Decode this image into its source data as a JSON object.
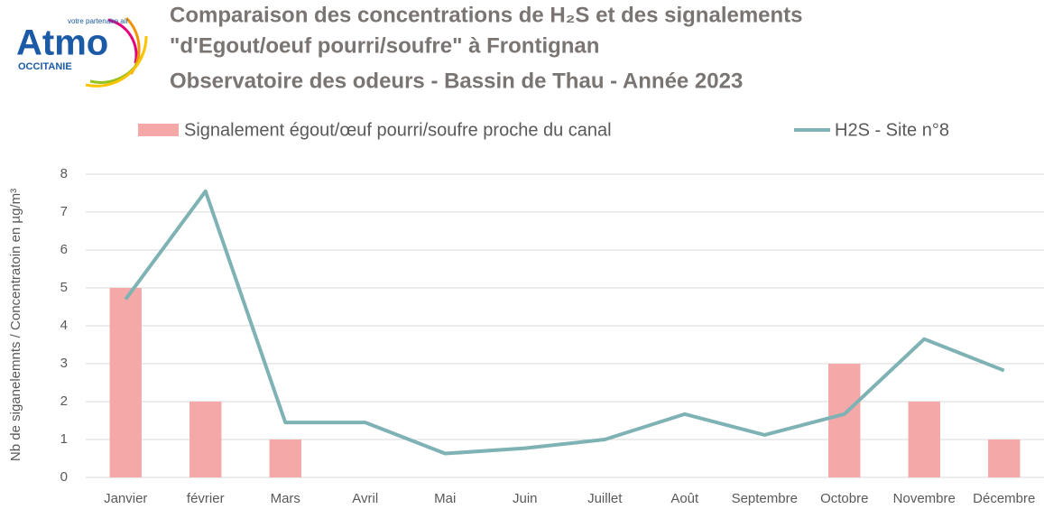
{
  "logo": {
    "brand": "Atmo",
    "tagline": "votre partenaire air",
    "region": "OCCITANIE"
  },
  "chart_data": {
    "type": "combo",
    "title": [
      "Comparaison des concentrations de H₂S et des signalements",
      "\"d'Egout/oeuf pourri/soufre\" à Frontignan",
      "Observatoire des odeurs - Bassin de Thau - Année 2023"
    ],
    "y_label": "Nb de siganelemnts / Concentratoin en µg/m³",
    "categories": [
      "Janvier",
      "février",
      "Mars",
      "Avril",
      "Mai",
      "Juin",
      "Juillet",
      "Août",
      "Septembre",
      "Octobre",
      "Novembre",
      "Décembre"
    ],
    "series": [
      {
        "name": "Signalement égout/œuf pourri/soufre proche du canal",
        "type": "bar",
        "color": "#f4a9a8",
        "values": [
          5,
          2,
          1,
          0,
          0,
          0,
          0,
          0,
          0,
          3,
          2,
          1
        ]
      },
      {
        "name": "H2S - Site n°8",
        "type": "line",
        "color": "#7fb2b4",
        "values": [
          4.7,
          7.55,
          1.45,
          1.45,
          0.63,
          0.77,
          1.0,
          1.67,
          1.12,
          1.67,
          3.65,
          2.82
        ]
      }
    ],
    "ylim": [
      0,
      8
    ],
    "yticks": [
      0,
      1,
      2,
      3,
      4,
      5,
      6,
      7,
      8
    ],
    "grid": true,
    "legend": "top"
  }
}
